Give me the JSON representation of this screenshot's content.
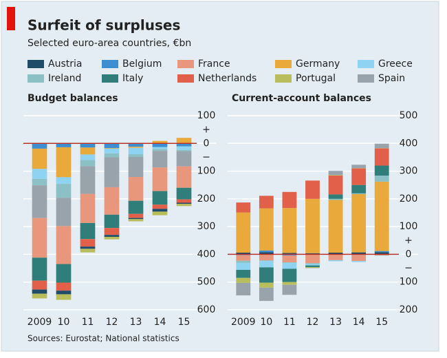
{
  "title": "Surfeit of surpluses",
  "subtitle": "Selected euro-area countries, €bn",
  "source": "Sources: Eurostat; National statistics",
  "chart_data": [
    {
      "type": "bar",
      "stacked": true,
      "title": "Budget balances",
      "categories": [
        "2009",
        "10",
        "11",
        "12",
        "13",
        "14",
        "15"
      ],
      "ylim": [
        -600,
        100
      ],
      "yticks": [
        100,
        0,
        {
          "value": -100,
          "label": "100"
        },
        {
          "value": -200,
          "label": "200"
        },
        {
          "value": -300,
          "label": "300"
        },
        {
          "value": -400,
          "label": "400"
        },
        {
          "value": -500,
          "label": "500"
        },
        {
          "value": -600,
          "label": "600"
        }
      ],
      "sign_labels": [
        "+",
        "−"
      ],
      "grid": true,
      "series": [
        {
          "name": "Belgium",
          "color": "#3d8fd1",
          "values": [
            -19,
            -14,
            -15,
            -17,
            -12,
            -13,
            -11
          ]
        },
        {
          "name": "Germany",
          "color": "#e9a93b",
          "values": [
            -73,
            -108,
            -25,
            -2,
            -4,
            9,
            20
          ]
        },
        {
          "name": "Greece",
          "color": "#8fd3f2",
          "values": [
            -36,
            -24,
            -20,
            -17,
            -23,
            -7,
            -13
          ]
        },
        {
          "name": "Ireland",
          "color": "#8bc1c5",
          "values": [
            -23,
            -50,
            -22,
            -14,
            -10,
            -7,
            -4
          ]
        },
        {
          "name": "Spain",
          "color": "#99a3ac",
          "values": [
            -118,
            -102,
            -100,
            -108,
            -72,
            -60,
            -55
          ]
        },
        {
          "name": "France",
          "color": "#e9977c",
          "values": [
            -143,
            -137,
            -105,
            -99,
            -86,
            -85,
            -77
          ]
        },
        {
          "name": "Italy",
          "color": "#2f7e79",
          "values": [
            -83,
            -67,
            -58,
            -48,
            -47,
            -49,
            -42
          ]
        },
        {
          "name": "Netherlands",
          "color": "#e2604a",
          "values": [
            -32,
            -29,
            -27,
            -25,
            -15,
            -15,
            -12
          ]
        },
        {
          "name": "Austria",
          "color": "#1e4c69",
          "values": [
            -15,
            -13,
            -8,
            -7,
            -4,
            -10,
            -4
          ]
        },
        {
          "name": "Portugal",
          "color": "#b9bd5b",
          "values": [
            -17,
            -20,
            -13,
            -9,
            -8,
            -13,
            -8
          ]
        }
      ]
    },
    {
      "type": "bar",
      "stacked": true,
      "title": "Current-account balances",
      "categories": [
        "2009",
        "10",
        "11",
        "12",
        "13",
        "14",
        "15"
      ],
      "ylim": [
        -200,
        500
      ],
      "yticks": [
        500,
        400,
        300,
        200,
        100,
        0,
        {
          "value": -100,
          "label": "100"
        },
        {
          "value": -200,
          "label": "200"
        }
      ],
      "sign_labels": [
        "+",
        "−"
      ],
      "grid": true,
      "series": [
        {
          "name": "Austria",
          "color": "#1e4c69",
          "values": [
            6,
            8,
            5,
            4,
            6,
            7,
            8
          ]
        },
        {
          "name": "Belgium",
          "color": "#3d8fd1",
          "values": [
            -3,
            6,
            -4,
            -1,
            -1,
            -2,
            4
          ]
        },
        {
          "name": "France",
          "color": "#e9977c",
          "values": [
            -20,
            -22,
            -25,
            -31,
            -20,
            -22,
            -4
          ]
        },
        {
          "name": "Germany",
          "color": "#e9a93b",
          "values": [
            145,
            152,
            162,
            196,
            190,
            210,
            250
          ]
        },
        {
          "name": "Ireland",
          "color": "#8bc1c5",
          "values": [
            -8,
            -2,
            -2,
            -3,
            4,
            3,
            22
          ]
        },
        {
          "name": "Greece",
          "color": "#8fd3f2",
          "values": [
            -25,
            -23,
            -21,
            -5,
            -4,
            -4,
            -1
          ]
        },
        {
          "name": "Italy",
          "color": "#2f7e79",
          "values": [
            -29,
            -55,
            -48,
            -6,
            16,
            30,
            36
          ]
        },
        {
          "name": "Netherlands",
          "color": "#e2604a",
          "values": [
            36,
            45,
            58,
            66,
            68,
            60,
            62
          ]
        },
        {
          "name": "Portugal",
          "color": "#b9bd5b",
          "values": [
            -18,
            -18,
            -10,
            -3,
            2,
            1,
            1
          ]
        },
        {
          "name": "Spain",
          "color": "#99a3ac",
          "values": [
            -45,
            -48,
            -36,
            -1,
            15,
            12,
            16
          ]
        }
      ]
    }
  ]
}
